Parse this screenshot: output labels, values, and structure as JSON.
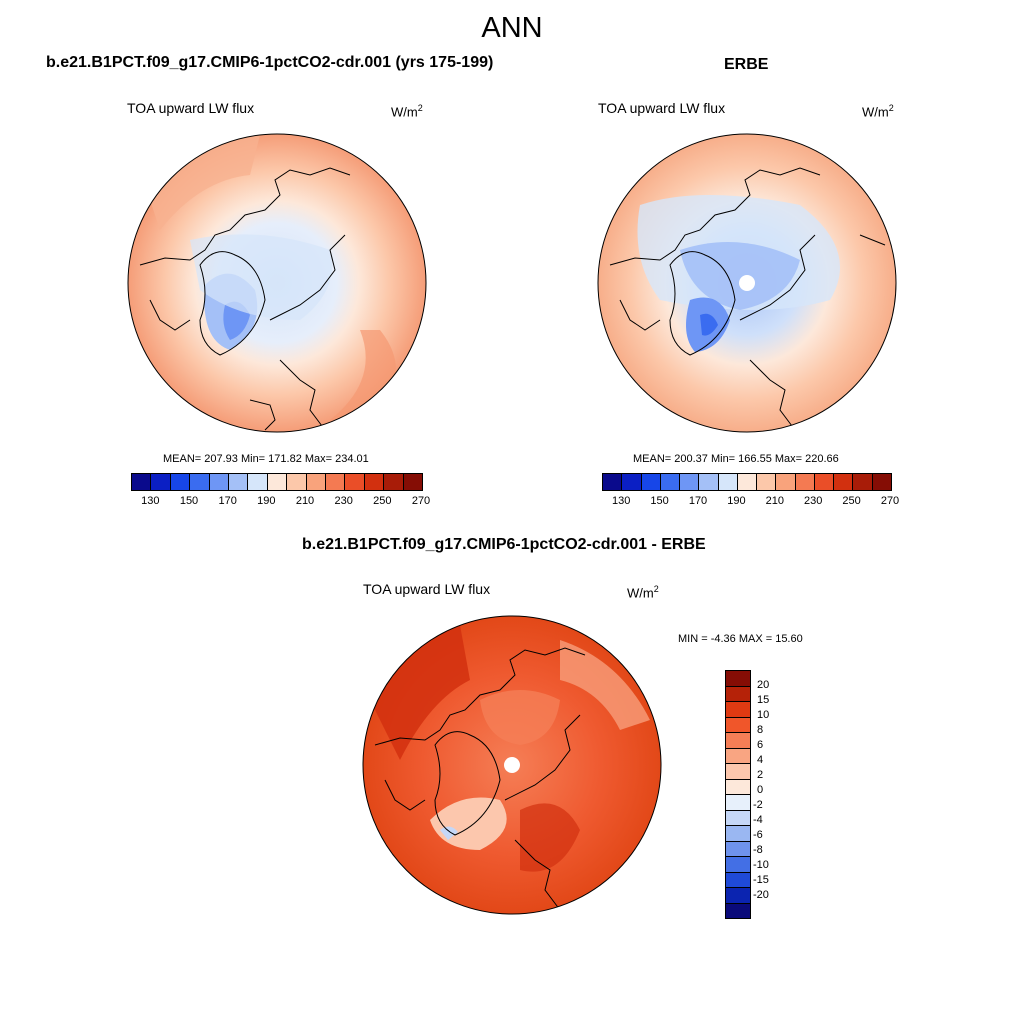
{
  "title": "ANN",
  "panels": [
    {
      "title": "b.e21.B1PCT.f09_g17.CMIP6-1pctCO2-cdr.001 (yrs 175-199)",
      "variable": "TOA upward LW flux",
      "units_base": "W/m",
      "units_exp": "2",
      "stats": "MEAN= 207.93  Min= 171.82  Max= 234.01"
    },
    {
      "title": "ERBE",
      "variable": "TOA upward LW flux",
      "units_base": "W/m",
      "units_exp": "2",
      "stats": "MEAN= 200.37  Min= 166.55  Max= 220.66"
    },
    {
      "title": "b.e21.B1PCT.f09_g17.CMIP6-1pctCO2-cdr.001 - ERBE",
      "variable": "TOA upward LW flux",
      "units_base": "W/m",
      "units_exp": "2",
      "stats": "MIN =  -4.36 MAX =  15.60"
    }
  ],
  "colorbar_abs": {
    "labels": [
      "130",
      "150",
      "170",
      "190",
      "210",
      "230",
      "250",
      "270"
    ],
    "colors": [
      "#0a0a8c",
      "#0b1fc4",
      "#1746e8",
      "#3a6cf0",
      "#6e96f5",
      "#a4c0f7",
      "#d6e6fa",
      "#fde8da",
      "#fcc8aa",
      "#f9a37c",
      "#f47a52",
      "#ea4e28",
      "#d2300f",
      "#a81c08",
      "#850d05"
    ]
  },
  "colorbar_diff": {
    "labels": [
      "20",
      "15",
      "10",
      "8",
      "6",
      "4",
      "2",
      "0",
      "-2",
      "-4",
      "-6",
      "-8",
      "-10",
      "-15",
      "-20"
    ],
    "colors": [
      "#850d05",
      "#b52208",
      "#df3a12",
      "#f0562a",
      "#f57e56",
      "#f9a582",
      "#fcc7ad",
      "#fde8da",
      "#e7f0fb",
      "#c5d7f7",
      "#9ab7f2",
      "#6f93ec",
      "#436fe5",
      "#1f4ad8",
      "#0b24b0",
      "#0a0a7a"
    ]
  }
}
